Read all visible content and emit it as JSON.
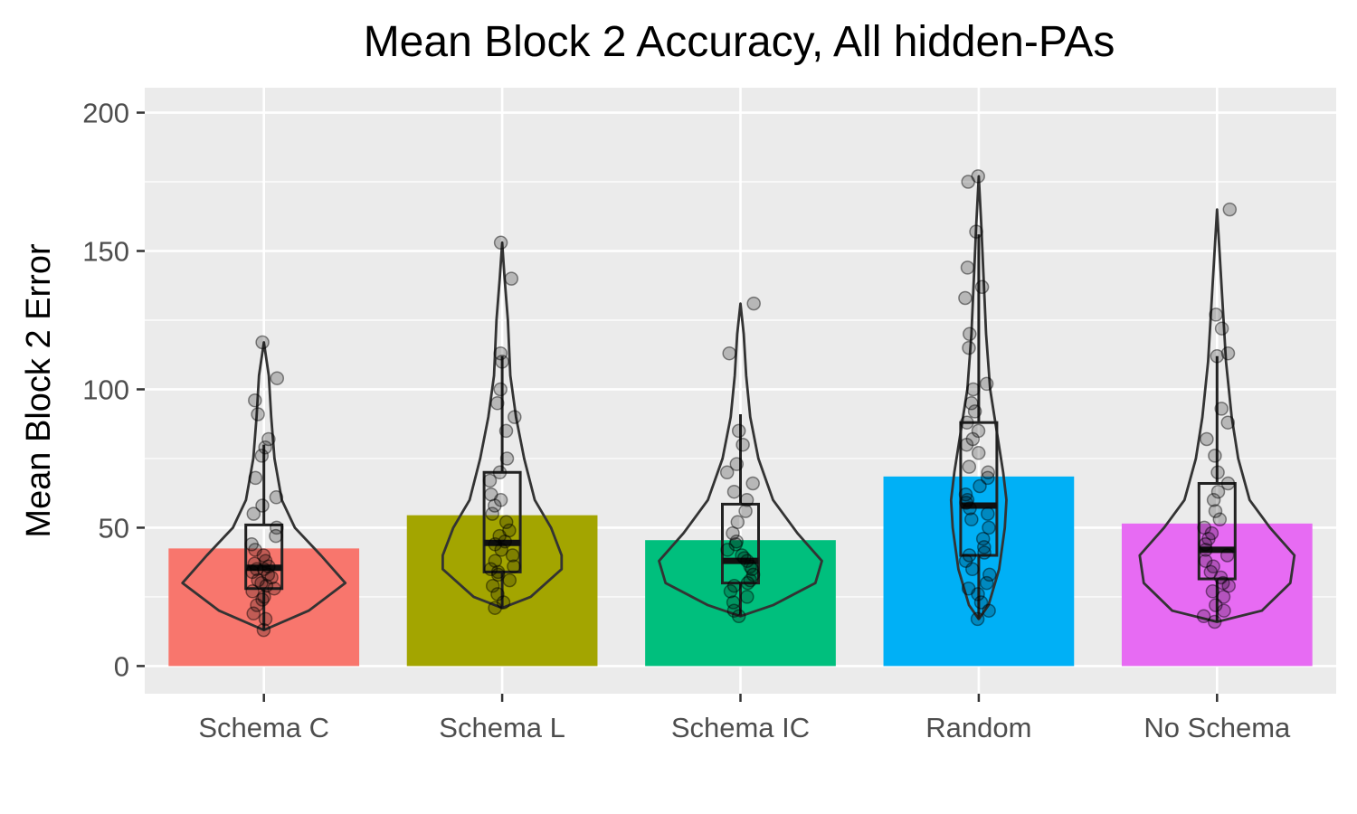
{
  "chart_data": {
    "type": "bar",
    "title": "Mean Block 2 Accuracy, All hidden-PAs",
    "xlabel": "",
    "ylabel": "Mean Block 2 Error",
    "ylim": [
      -10,
      209
    ],
    "yticks": [
      0,
      50,
      100,
      150,
      200
    ],
    "grid": true,
    "legend": "none",
    "categories": [
      "Schema C",
      "Schema L",
      "Schema IC",
      "Random",
      "No Schema"
    ],
    "values": [
      42.5,
      54.5,
      45.5,
      68.5,
      51.5
    ],
    "colors": [
      "#F8766D",
      "#A3A500",
      "#00BF7D",
      "#00B0F6",
      "#E76BF3"
    ],
    "boxplots": [
      {
        "min": 13,
        "q1": 28,
        "median": 35.5,
        "q3": 51,
        "max": 80
      },
      {
        "min": 21,
        "q1": 34,
        "median": 44.5,
        "q3": 70,
        "max": 112
      },
      {
        "min": 18,
        "q1": 30,
        "median": 38,
        "q3": 58.5,
        "max": 91
      },
      {
        "min": 17,
        "q1": 40,
        "median": 58,
        "q3": 88,
        "max": 156
      },
      {
        "min": 16,
        "q1": 31.5,
        "median": 42,
        "q3": 66,
        "max": 112
      }
    ],
    "violins": [
      {
        "profile": [
          [
            13,
            0.0
          ],
          [
            20,
            0.55
          ],
          [
            30,
            1.0
          ],
          [
            40,
            0.7
          ],
          [
            50,
            0.38
          ],
          [
            60,
            0.22
          ],
          [
            75,
            0.13
          ],
          [
            90,
            0.09
          ],
          [
            105,
            0.06
          ],
          [
            117,
            0.0
          ]
        ]
      },
      {
        "profile": [
          [
            21,
            0.0
          ],
          [
            25,
            0.35
          ],
          [
            35,
            0.73
          ],
          [
            40,
            0.73
          ],
          [
            50,
            0.6
          ],
          [
            60,
            0.4
          ],
          [
            75,
            0.27
          ],
          [
            90,
            0.17
          ],
          [
            105,
            0.1
          ],
          [
            125,
            0.07
          ],
          [
            140,
            0.03
          ],
          [
            153,
            0.0
          ]
        ]
      },
      {
        "profile": [
          [
            18,
            0.0
          ],
          [
            22,
            0.4
          ],
          [
            30,
            0.92
          ],
          [
            38,
            1.0
          ],
          [
            48,
            0.7
          ],
          [
            60,
            0.4
          ],
          [
            75,
            0.22
          ],
          [
            90,
            0.12
          ],
          [
            105,
            0.07
          ],
          [
            120,
            0.04
          ],
          [
            131,
            0.0
          ]
        ]
      },
      {
        "profile": [
          [
            17,
            0.0
          ],
          [
            22,
            0.12
          ],
          [
            35,
            0.25
          ],
          [
            50,
            0.32
          ],
          [
            60,
            0.34
          ],
          [
            70,
            0.3
          ],
          [
            85,
            0.22
          ],
          [
            100,
            0.14
          ],
          [
            120,
            0.09
          ],
          [
            140,
            0.06
          ],
          [
            160,
            0.03
          ],
          [
            177,
            0.0
          ]
        ]
      },
      {
        "profile": [
          [
            16,
            0.0
          ],
          [
            20,
            0.55
          ],
          [
            30,
            0.9
          ],
          [
            40,
            0.95
          ],
          [
            50,
            0.65
          ],
          [
            60,
            0.4
          ],
          [
            75,
            0.26
          ],
          [
            90,
            0.18
          ],
          [
            110,
            0.11
          ],
          [
            130,
            0.07
          ],
          [
            150,
            0.03
          ],
          [
            165,
            0.0
          ]
        ]
      }
    ],
    "points": [
      [
        13,
        17,
        19,
        22,
        24,
        25,
        27,
        28,
        29,
        30,
        31,
        32,
        33,
        34,
        35,
        35,
        36,
        37,
        38,
        40,
        42,
        44,
        47,
        50,
        55,
        58,
        61,
        68,
        76,
        79,
        82,
        91,
        96,
        104,
        117
      ],
      [
        21,
        23,
        26,
        29,
        31,
        33,
        34,
        35,
        36,
        38,
        40,
        42,
        44,
        45,
        47,
        49,
        52,
        55,
        58,
        60,
        62,
        67,
        70,
        75,
        85,
        90,
        95,
        100,
        110,
        113,
        140,
        153
      ],
      [
        18,
        20,
        23,
        25,
        27,
        29,
        30,
        31,
        33,
        35,
        36,
        38,
        39,
        40,
        42,
        44,
        45,
        48,
        52,
        56,
        60,
        63,
        66,
        70,
        73,
        80,
        85,
        113,
        131
      ],
      [
        17,
        20,
        23,
        26,
        28,
        30,
        33,
        35,
        38,
        40,
        41,
        43,
        46,
        50,
        53,
        55,
        57,
        59,
        60,
        62,
        65,
        68,
        70,
        72,
        77,
        80,
        82,
        85,
        88,
        92,
        95,
        100,
        102,
        115,
        120,
        133,
        137,
        144,
        157,
        175,
        177
      ],
      [
        16,
        18,
        20,
        22,
        25,
        27,
        29,
        30,
        32,
        34,
        36,
        38,
        40,
        42,
        44,
        46,
        48,
        50,
        53,
        56,
        60,
        63,
        66,
        70,
        76,
        82,
        88,
        93,
        112,
        113,
        122,
        127,
        165
      ]
    ]
  }
}
